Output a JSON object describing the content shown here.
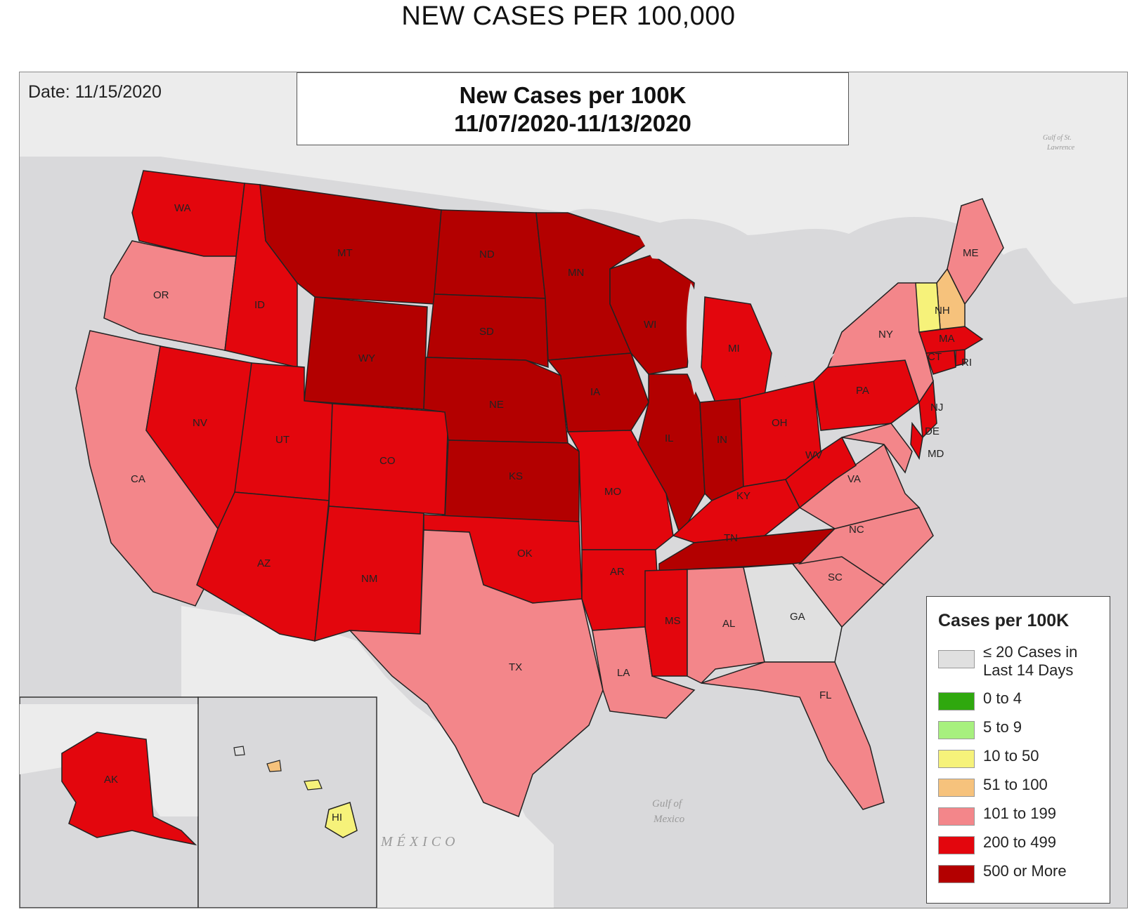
{
  "page_title": "NEW CASES PER 100,000",
  "date_label": "Date: 11/15/2020",
  "map_title": {
    "line1": "New Cases per 100K",
    "line2": "11/07/2020-11/13/2020"
  },
  "colors": {
    "ocean": "#d9d9db",
    "land": "#ececec",
    "le20": "#e0e0e0",
    "c0_4": "#2fa80e",
    "c5_9": "#a7f07e",
    "c10_50": "#f6f27a",
    "c51_100": "#f6c27c",
    "c101_199": "#f3868a",
    "c200_499": "#e3060d",
    "c500": "#b30000"
  },
  "legend": {
    "title": "Cases per 100K",
    "items": [
      {
        "label_line1": "≤ 20 Cases in",
        "label_line2": "Last 14 Days",
        "color": "#e0e0e0"
      },
      {
        "label_line1": "0 to 4",
        "label_line2": "",
        "color": "#2fa80e"
      },
      {
        "label_line1": "5 to 9",
        "label_line2": "",
        "color": "#a7f07e"
      },
      {
        "label_line1": "10 to 50",
        "label_line2": "",
        "color": "#f6f27a"
      },
      {
        "label_line1": "51 to 100",
        "label_line2": "",
        "color": "#f6c27c"
      },
      {
        "label_line1": "101 to 199",
        "label_line2": "",
        "color": "#f3868a"
      },
      {
        "label_line1": "200 to 499",
        "label_line2": "",
        "color": "#e3060d"
      },
      {
        "label_line1": "500 or More",
        "label_line2": "",
        "color": "#b30000"
      }
    ]
  },
  "states": [
    {
      "abbr": "WA",
      "fill": "#e3060d"
    },
    {
      "abbr": "OR",
      "fill": "#f3868a"
    },
    {
      "abbr": "CA",
      "fill": "#f3868a"
    },
    {
      "abbr": "ID",
      "fill": "#e3060d"
    },
    {
      "abbr": "NV",
      "fill": "#e3060d"
    },
    {
      "abbr": "MT",
      "fill": "#b30000"
    },
    {
      "abbr": "WY",
      "fill": "#b30000"
    },
    {
      "abbr": "UT",
      "fill": "#e3060d"
    },
    {
      "abbr": "AZ",
      "fill": "#e3060d"
    },
    {
      "abbr": "CO",
      "fill": "#e3060d"
    },
    {
      "abbr": "NM",
      "fill": "#e3060d"
    },
    {
      "abbr": "ND",
      "fill": "#b30000"
    },
    {
      "abbr": "SD",
      "fill": "#b30000"
    },
    {
      "abbr": "NE",
      "fill": "#b30000"
    },
    {
      "abbr": "KS",
      "fill": "#b30000"
    },
    {
      "abbr": "OK",
      "fill": "#e3060d"
    },
    {
      "abbr": "TX",
      "fill": "#f3868a"
    },
    {
      "abbr": "MN",
      "fill": "#b30000"
    },
    {
      "abbr": "IA",
      "fill": "#b30000"
    },
    {
      "abbr": "MO",
      "fill": "#e3060d"
    },
    {
      "abbr": "AR",
      "fill": "#e3060d"
    },
    {
      "abbr": "LA",
      "fill": "#f3868a"
    },
    {
      "abbr": "WI",
      "fill": "#b30000"
    },
    {
      "abbr": "IL",
      "fill": "#b30000"
    },
    {
      "abbr": "MI",
      "fill": "#e3060d"
    },
    {
      "abbr": "IN",
      "fill": "#b30000"
    },
    {
      "abbr": "OH",
      "fill": "#e3060d"
    },
    {
      "abbr": "KY",
      "fill": "#e3060d"
    },
    {
      "abbr": "TN",
      "fill": "#b30000"
    },
    {
      "abbr": "MS",
      "fill": "#e3060d"
    },
    {
      "abbr": "AL",
      "fill": "#f3868a"
    },
    {
      "abbr": "GA",
      "fill": "#e0e0e0"
    },
    {
      "abbr": "FL",
      "fill": "#f3868a"
    },
    {
      "abbr": "SC",
      "fill": "#f3868a"
    },
    {
      "abbr": "NC",
      "fill": "#f3868a"
    },
    {
      "abbr": "VA",
      "fill": "#f3868a"
    },
    {
      "abbr": "WV",
      "fill": "#e3060d"
    },
    {
      "abbr": "PA",
      "fill": "#e3060d"
    },
    {
      "abbr": "NY",
      "fill": "#f3868a"
    },
    {
      "abbr": "ME",
      "fill": "#f3868a"
    },
    {
      "abbr": "NH",
      "fill": "#f6c27c"
    },
    {
      "abbr": "MA",
      "fill": "#e3060d"
    },
    {
      "abbr": "CT",
      "fill": "#e3060d"
    },
    {
      "abbr": "RI",
      "fill": "#e3060d"
    },
    {
      "abbr": "NJ",
      "fill": "#e3060d"
    },
    {
      "abbr": "DE",
      "fill": "#e3060d"
    },
    {
      "abbr": "MD",
      "fill": "#f3868a"
    },
    {
      "abbr": "AK",
      "fill": "#e3060d"
    },
    {
      "abbr": "HI",
      "fill": "#f6f27a"
    }
  ],
  "geo_labels": {
    "mexico": "MÉXICO",
    "gulf_mexico_1": "Gulf of",
    "gulf_mexico_2": "Mexico",
    "gulf_stl_1": "Gulf of St.",
    "gulf_stl_2": "Lawrence"
  }
}
